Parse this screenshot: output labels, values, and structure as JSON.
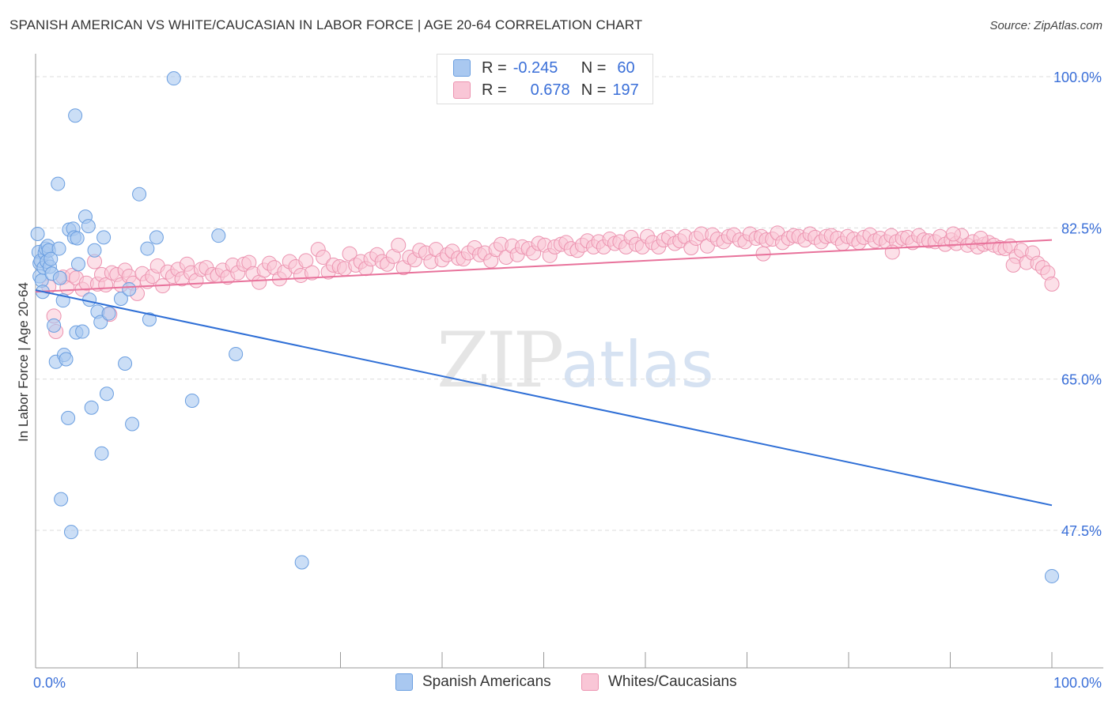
{
  "header": {
    "title": "SPANISH AMERICAN VS WHITE/CAUCASIAN IN LABOR FORCE | AGE 20-64 CORRELATION CHART",
    "source": "Source: ZipAtlas.com"
  },
  "watermark": {
    "zip": "ZIP",
    "atlas": "atlas"
  },
  "stats_legend": [
    {
      "r_label": "R =",
      "r_value": "-0.245",
      "n_label": "N =",
      "n_value": "60",
      "color": "#a9c8f0",
      "border": "#6a9ee0"
    },
    {
      "r_label": "R =",
      "r_value": "0.678",
      "n_label": "N =",
      "n_value": "197",
      "color": "#f9c6d6",
      "border": "#ec93b0"
    }
  ],
  "chart_data": {
    "type": "scatter",
    "title": "SPANISH AMERICAN VS WHITE/CAUCASIAN IN LABOR FORCE | AGE 20-64 CORRELATION CHART",
    "ylabel": "In Labor Force | Age 20-64",
    "xlabel": "",
    "xlim": [
      0,
      100
    ],
    "ylim": [
      30,
      100
    ],
    "x_tick_labels": [
      "0.0%",
      "100.0%"
    ],
    "y_ticks": [
      47.5,
      65.0,
      82.5,
      100.0
    ],
    "y_tick_labels": [
      "47.5%",
      "65.0%",
      "82.5%",
      "100.0%"
    ],
    "grid": true,
    "legend_placement": "top-center",
    "series": [
      {
        "name": "Spanish Americans",
        "color": "#7eaae6",
        "trend": {
          "x": [
            0,
            100
          ],
          "y": [
            75.3,
            50.4
          ],
          "color": "#2f6fd6"
        },
        "points": [
          [
            0.2,
            81.8
          ],
          [
            0.3,
            79.7
          ],
          [
            0.4,
            78.4
          ],
          [
            0.4,
            76.9
          ],
          [
            0.5,
            78.7
          ],
          [
            0.6,
            76.4
          ],
          [
            0.7,
            75.1
          ],
          [
            0.8,
            77.9
          ],
          [
            0.9,
            79.6
          ],
          [
            1.0,
            80.1
          ],
          [
            1.1,
            78.6
          ],
          [
            1.2,
            80.4
          ],
          [
            1.3,
            79.9
          ],
          [
            1.4,
            78.0
          ],
          [
            1.5,
            78.9
          ],
          [
            1.6,
            77.2
          ],
          [
            1.8,
            71.2
          ],
          [
            2.0,
            67.0
          ],
          [
            2.2,
            87.6
          ],
          [
            2.3,
            80.1
          ],
          [
            2.4,
            76.7
          ],
          [
            2.5,
            51.1
          ],
          [
            2.7,
            74.1
          ],
          [
            2.8,
            67.8
          ],
          [
            3.0,
            67.3
          ],
          [
            3.2,
            60.5
          ],
          [
            3.3,
            82.3
          ],
          [
            3.5,
            47.3
          ],
          [
            3.7,
            82.4
          ],
          [
            3.8,
            81.4
          ],
          [
            3.9,
            95.5
          ],
          [
            4.0,
            70.4
          ],
          [
            4.1,
            81.3
          ],
          [
            4.2,
            78.3
          ],
          [
            4.6,
            70.5
          ],
          [
            4.9,
            83.8
          ],
          [
            5.2,
            82.7
          ],
          [
            5.3,
            74.2
          ],
          [
            5.5,
            61.7
          ],
          [
            5.8,
            79.9
          ],
          [
            6.1,
            72.8
          ],
          [
            6.4,
            71.6
          ],
          [
            6.5,
            56.4
          ],
          [
            6.7,
            81.4
          ],
          [
            7.0,
            63.3
          ],
          [
            7.2,
            72.6
          ],
          [
            8.4,
            74.3
          ],
          [
            8.8,
            66.8
          ],
          [
            9.2,
            75.4
          ],
          [
            9.5,
            59.8
          ],
          [
            10.2,
            86.4
          ],
          [
            11.0,
            80.1
          ],
          [
            11.2,
            71.9
          ],
          [
            11.9,
            81.4
          ],
          [
            13.6,
            99.8
          ],
          [
            15.4,
            62.5
          ],
          [
            18.0,
            81.6
          ],
          [
            19.7,
            67.9
          ],
          [
            26.2,
            43.8
          ],
          [
            100.0,
            42.2
          ]
        ]
      },
      {
        "name": "Whites/Caucasians",
        "color": "#f4a7c0",
        "trend": {
          "x": [
            0,
            100
          ],
          "y": [
            75.1,
            81.1
          ],
          "color": "#e8729b"
        },
        "points": [
          [
            1.3,
            75.7
          ],
          [
            1.8,
            72.3
          ],
          [
            2.0,
            70.5
          ],
          [
            2.7,
            76.8
          ],
          [
            3.1,
            75.6
          ],
          [
            3.6,
            77.0
          ],
          [
            4.0,
            76.7
          ],
          [
            4.6,
            75.4
          ],
          [
            5.0,
            76.1
          ],
          [
            5.8,
            78.6
          ],
          [
            6.1,
            76.0
          ],
          [
            6.5,
            77.1
          ],
          [
            6.9,
            75.9
          ],
          [
            7.3,
            72.5
          ],
          [
            7.5,
            77.3
          ],
          [
            8.0,
            77.1
          ],
          [
            8.4,
            75.9
          ],
          [
            8.8,
            77.6
          ],
          [
            9.2,
            76.9
          ],
          [
            9.6,
            76.1
          ],
          [
            10.0,
            74.9
          ],
          [
            10.5,
            77.2
          ],
          [
            11.0,
            76.3
          ],
          [
            11.5,
            76.9
          ],
          [
            12.0,
            78.1
          ],
          [
            12.5,
            75.8
          ],
          [
            13.0,
            77.4
          ],
          [
            13.5,
            76.9
          ],
          [
            14.0,
            77.7
          ],
          [
            14.4,
            76.6
          ],
          [
            14.9,
            78.3
          ],
          [
            15.3,
            77.3
          ],
          [
            15.8,
            76.4
          ],
          [
            16.3,
            77.7
          ],
          [
            16.8,
            77.9
          ],
          [
            17.4,
            77.1
          ],
          [
            17.9,
            77.0
          ],
          [
            18.4,
            77.6
          ],
          [
            18.9,
            76.8
          ],
          [
            19.4,
            78.2
          ],
          [
            19.9,
            77.3
          ],
          [
            20.5,
            78.3
          ],
          [
            21.0,
            78.5
          ],
          [
            21.4,
            77.2
          ],
          [
            22.0,
            76.2
          ],
          [
            22.5,
            77.6
          ],
          [
            23.0,
            78.4
          ],
          [
            23.5,
            77.9
          ],
          [
            24.0,
            76.6
          ],
          [
            24.5,
            77.4
          ],
          [
            25.0,
            78.6
          ],
          [
            25.6,
            78.0
          ],
          [
            26.1,
            77.0
          ],
          [
            26.6,
            78.7
          ],
          [
            27.2,
            77.3
          ],
          [
            27.8,
            80.0
          ],
          [
            28.3,
            79.1
          ],
          [
            28.8,
            77.4
          ],
          [
            29.3,
            78.2
          ],
          [
            29.9,
            78.0
          ],
          [
            30.4,
            77.8
          ],
          [
            30.9,
            79.5
          ],
          [
            31.5,
            78.2
          ],
          [
            32.0,
            78.6
          ],
          [
            32.5,
            77.8
          ],
          [
            33.0,
            78.9
          ],
          [
            33.6,
            79.4
          ],
          [
            34.1,
            78.6
          ],
          [
            34.6,
            78.3
          ],
          [
            35.2,
            79.2
          ],
          [
            35.7,
            80.5
          ],
          [
            36.2,
            77.9
          ],
          [
            36.8,
            79.1
          ],
          [
            37.3,
            78.8
          ],
          [
            37.8,
            79.9
          ],
          [
            38.4,
            79.6
          ],
          [
            38.9,
            78.6
          ],
          [
            39.4,
            80.0
          ],
          [
            40.0,
            78.8
          ],
          [
            40.5,
            79.4
          ],
          [
            41.0,
            79.8
          ],
          [
            41.6,
            79.0
          ],
          [
            42.1,
            78.9
          ],
          [
            42.6,
            79.6
          ],
          [
            43.2,
            80.2
          ],
          [
            43.7,
            79.4
          ],
          [
            44.2,
            79.6
          ],
          [
            44.8,
            78.7
          ],
          [
            45.3,
            80.0
          ],
          [
            45.8,
            80.6
          ],
          [
            46.3,
            79.1
          ],
          [
            46.9,
            80.4
          ],
          [
            47.4,
            79.4
          ],
          [
            47.9,
            80.3
          ],
          [
            48.5,
            80.1
          ],
          [
            49.0,
            79.6
          ],
          [
            49.5,
            80.7
          ],
          [
            50.1,
            80.5
          ],
          [
            50.6,
            79.3
          ],
          [
            51.1,
            80.3
          ],
          [
            51.7,
            80.6
          ],
          [
            52.2,
            80.8
          ],
          [
            52.7,
            80.1
          ],
          [
            53.3,
            79.9
          ],
          [
            53.8,
            80.5
          ],
          [
            54.3,
            81.0
          ],
          [
            54.9,
            80.3
          ],
          [
            55.4,
            80.9
          ],
          [
            55.9,
            80.3
          ],
          [
            56.5,
            81.2
          ],
          [
            57.0,
            80.7
          ],
          [
            57.5,
            80.9
          ],
          [
            58.1,
            80.3
          ],
          [
            58.6,
            81.4
          ],
          [
            59.1,
            80.6
          ],
          [
            59.7,
            80.3
          ],
          [
            60.2,
            81.5
          ],
          [
            60.7,
            80.8
          ],
          [
            61.3,
            80.3
          ],
          [
            61.8,
            81.1
          ],
          [
            62.3,
            81.4
          ],
          [
            62.9,
            80.7
          ],
          [
            63.4,
            81.0
          ],
          [
            63.9,
            81.5
          ],
          [
            64.5,
            80.2
          ],
          [
            65.0,
            81.3
          ],
          [
            65.5,
            81.8
          ],
          [
            66.1,
            80.4
          ],
          [
            66.6,
            81.7
          ],
          [
            67.1,
            81.2
          ],
          [
            67.7,
            80.9
          ],
          [
            68.2,
            81.5
          ],
          [
            68.7,
            81.7
          ],
          [
            69.3,
            81.1
          ],
          [
            69.8,
            80.9
          ],
          [
            70.3,
            81.8
          ],
          [
            70.9,
            81.3
          ],
          [
            71.4,
            81.5
          ],
          [
            71.9,
            81.1
          ],
          [
            72.5,
            81.2
          ],
          [
            73.0,
            81.9
          ],
          [
            73.5,
            80.8
          ],
          [
            74.1,
            81.3
          ],
          [
            74.6,
            81.6
          ],
          [
            75.1,
            81.5
          ],
          [
            75.7,
            81.1
          ],
          [
            76.2,
            81.8
          ],
          [
            76.7,
            81.4
          ],
          [
            77.3,
            80.9
          ],
          [
            77.8,
            81.5
          ],
          [
            78.3,
            81.6
          ],
          [
            78.9,
            81.3
          ],
          [
            79.4,
            80.7
          ],
          [
            79.9,
            81.5
          ],
          [
            80.5,
            81.2
          ],
          [
            81.0,
            80.8
          ],
          [
            81.5,
            81.4
          ],
          [
            82.1,
            81.7
          ],
          [
            82.6,
            81.0
          ],
          [
            83.1,
            81.3
          ],
          [
            83.7,
            80.9
          ],
          [
            84.2,
            81.6
          ],
          [
            84.7,
            80.9
          ],
          [
            85.3,
            81.3
          ],
          [
            85.8,
            81.4
          ],
          [
            86.3,
            80.8
          ],
          [
            86.9,
            81.6
          ],
          [
            87.4,
            81.1
          ],
          [
            87.9,
            81.0
          ],
          [
            88.5,
            80.9
          ],
          [
            89.0,
            81.5
          ],
          [
            89.5,
            80.6
          ],
          [
            90.1,
            81.1
          ],
          [
            90.6,
            80.7
          ],
          [
            91.1,
            81.6
          ],
          [
            91.7,
            80.5
          ],
          [
            92.2,
            80.9
          ],
          [
            92.7,
            80.3
          ],
          [
            93.3,
            80.6
          ],
          [
            93.8,
            80.8
          ],
          [
            94.3,
            80.5
          ],
          [
            94.9,
            80.2
          ],
          [
            95.4,
            80.1
          ],
          [
            95.9,
            80.4
          ],
          [
            96.5,
            79.2
          ],
          [
            97.0,
            79.9
          ],
          [
            97.5,
            78.5
          ],
          [
            98.1,
            79.6
          ],
          [
            98.6,
            78.4
          ],
          [
            99.1,
            77.9
          ],
          [
            99.6,
            77.3
          ],
          [
            100.0,
            76.0
          ],
          [
            96.2,
            78.2
          ],
          [
            93.0,
            81.3
          ],
          [
            90.3,
            81.8
          ],
          [
            84.3,
            79.7
          ],
          [
            71.6,
            79.5
          ]
        ]
      }
    ]
  },
  "bottom_legend": [
    {
      "label": "Spanish Americans",
      "color": "#a9c8f0",
      "border": "#6a9ee0"
    },
    {
      "label": "Whites/Caucasians",
      "color": "#f9c6d6",
      "border": "#ec93b0"
    }
  ]
}
